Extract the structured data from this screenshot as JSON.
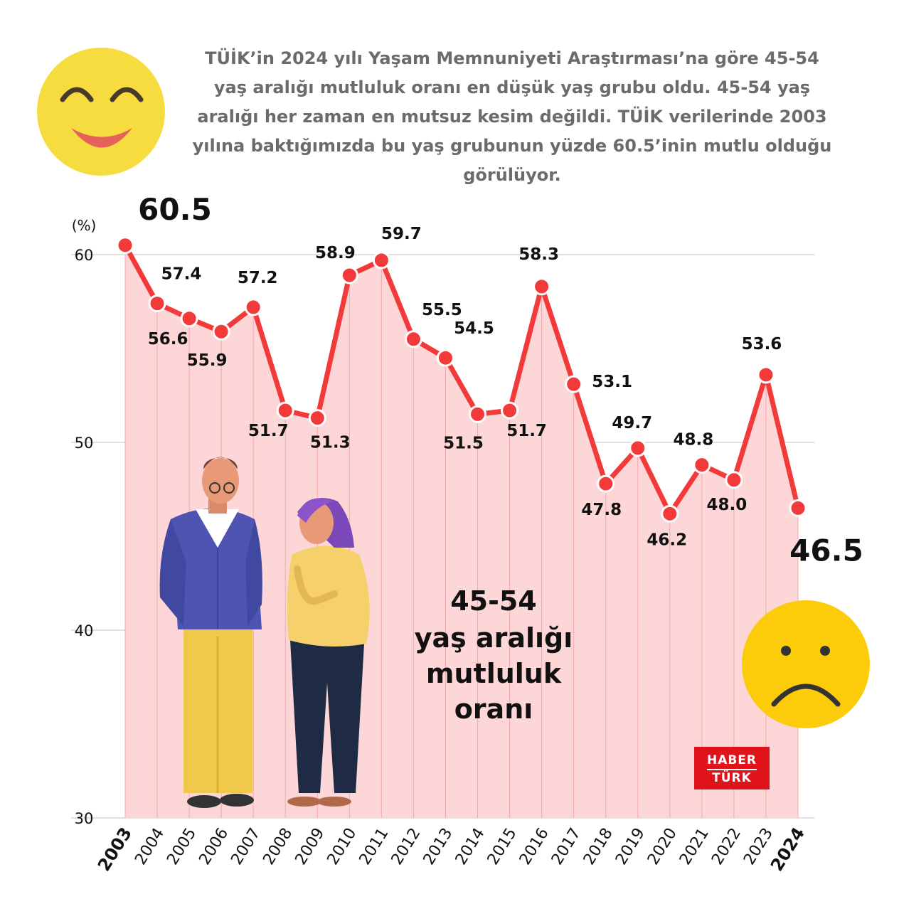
{
  "intro_text": "TÜİK’in 2024 yılı Yaşam Memnuniyeti Araştırması’na göre 45-54 yaş aralığı mutluluk oranı en düşük yaş grubu oldu. 45-54 yaş aralığı her zaman en mutsuz kesim değildi. TÜİK verilerinde 2003 yılına baktığımızda bu yaş grubunun yüzde 60.5’inin mutlu olduğu görülüyor.",
  "logo": {
    "line1": "HABER",
    "line2": "TÜRK"
  },
  "colors": {
    "line": "#f23a3a",
    "fill": "#fdd6d8",
    "grid": "#d5d5d5",
    "text": "#111111",
    "smiley": "#f7dc3f",
    "sad": "#fccc0a"
  },
  "icons": [
    "happy-face-icon",
    "sad-face-icon",
    "man-illustration",
    "woman-illustration"
  ],
  "chart_data": {
    "type": "line",
    "title": "45-54 yaş aralığı mutluluk oranı",
    "unit_label": "(%)",
    "ylim": [
      30,
      60
    ],
    "yticks": [
      60,
      50,
      40,
      30
    ],
    "grid": true,
    "x": [
      "2003",
      "2004",
      "2005",
      "2006",
      "2007",
      "2008",
      "2009",
      "2010",
      "2011",
      "2012",
      "2013",
      "2014",
      "2015",
      "2016",
      "2017",
      "2018",
      "2019",
      "2020",
      "2021",
      "2022",
      "2023",
      "2024"
    ],
    "bold_x": [
      "2003",
      "2024"
    ],
    "series": [
      {
        "values": [
          60.5,
          57.4,
          56.6,
          55.9,
          57.2,
          51.7,
          51.3,
          58.9,
          59.7,
          55.5,
          54.5,
          51.5,
          51.7,
          58.3,
          53.1,
          47.8,
          49.7,
          46.2,
          48.8,
          48.0,
          53.6,
          46.5
        ]
      }
    ],
    "highlight_labels": [
      "60.5",
      "46.5"
    ],
    "data_labels": [
      "60.5",
      "57.4",
      "56.6",
      "55.9",
      "57.2",
      "51.7",
      "51.3",
      "58.9",
      "59.7",
      "55.5",
      "54.5",
      "51.5",
      "51.7",
      "58.3",
      "53.1",
      "47.8",
      "49.7",
      "46.2",
      "48.8",
      "48.0",
      "53.6",
      "46.5"
    ]
  }
}
